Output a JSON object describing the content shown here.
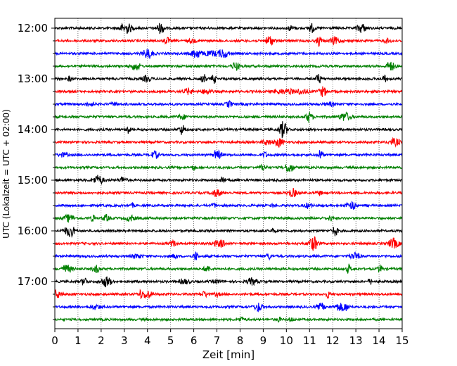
{
  "chart_data": {
    "type": "line",
    "title": "",
    "xlabel": "Zeit  [min]",
    "ylabel": "UTC (Lokalzeit = UTC + 02:00)",
    "xlim": [
      0,
      15
    ],
    "x_ticks": [
      "0",
      "1",
      "2",
      "3",
      "4",
      "5",
      "6",
      "7",
      "8",
      "9",
      "10",
      "11",
      "12",
      "13",
      "14",
      "15"
    ],
    "y_tick_labels": [
      "12:00",
      "13:00",
      "14:00",
      "15:00",
      "16:00",
      "17:00"
    ],
    "grid": {
      "vertical_dotted": true,
      "horizontal": false
    },
    "colors": [
      "#000000",
      "#ff0000",
      "#0000ff",
      "#008000"
    ],
    "series": [
      {
        "start": "12:00",
        "color": "#000000"
      },
      {
        "start": "12:15",
        "color": "#ff0000"
      },
      {
        "start": "12:30",
        "color": "#0000ff"
      },
      {
        "start": "12:45",
        "color": "#008000"
      },
      {
        "start": "13:00",
        "color": "#000000"
      },
      {
        "start": "13:15",
        "color": "#ff0000"
      },
      {
        "start": "13:30",
        "color": "#0000ff"
      },
      {
        "start": "13:45",
        "color": "#008000"
      },
      {
        "start": "14:00",
        "color": "#000000"
      },
      {
        "start": "14:15",
        "color": "#ff0000"
      },
      {
        "start": "14:30",
        "color": "#0000ff"
      },
      {
        "start": "14:45",
        "color": "#008000"
      },
      {
        "start": "15:00",
        "color": "#000000"
      },
      {
        "start": "15:15",
        "color": "#ff0000"
      },
      {
        "start": "15:30",
        "color": "#0000ff"
      },
      {
        "start": "15:45",
        "color": "#008000"
      },
      {
        "start": "16:00",
        "color": "#000000"
      },
      {
        "start": "16:15",
        "color": "#ff0000"
      },
      {
        "start": "16:30",
        "color": "#0000ff"
      },
      {
        "start": "16:45",
        "color": "#008000"
      },
      {
        "start": "17:00",
        "color": "#000000"
      },
      {
        "start": "17:15",
        "color": "#ff0000"
      },
      {
        "start": "17:30",
        "color": "#0000ff"
      },
      {
        "start": "17:45",
        "color": "#008000"
      }
    ]
  }
}
